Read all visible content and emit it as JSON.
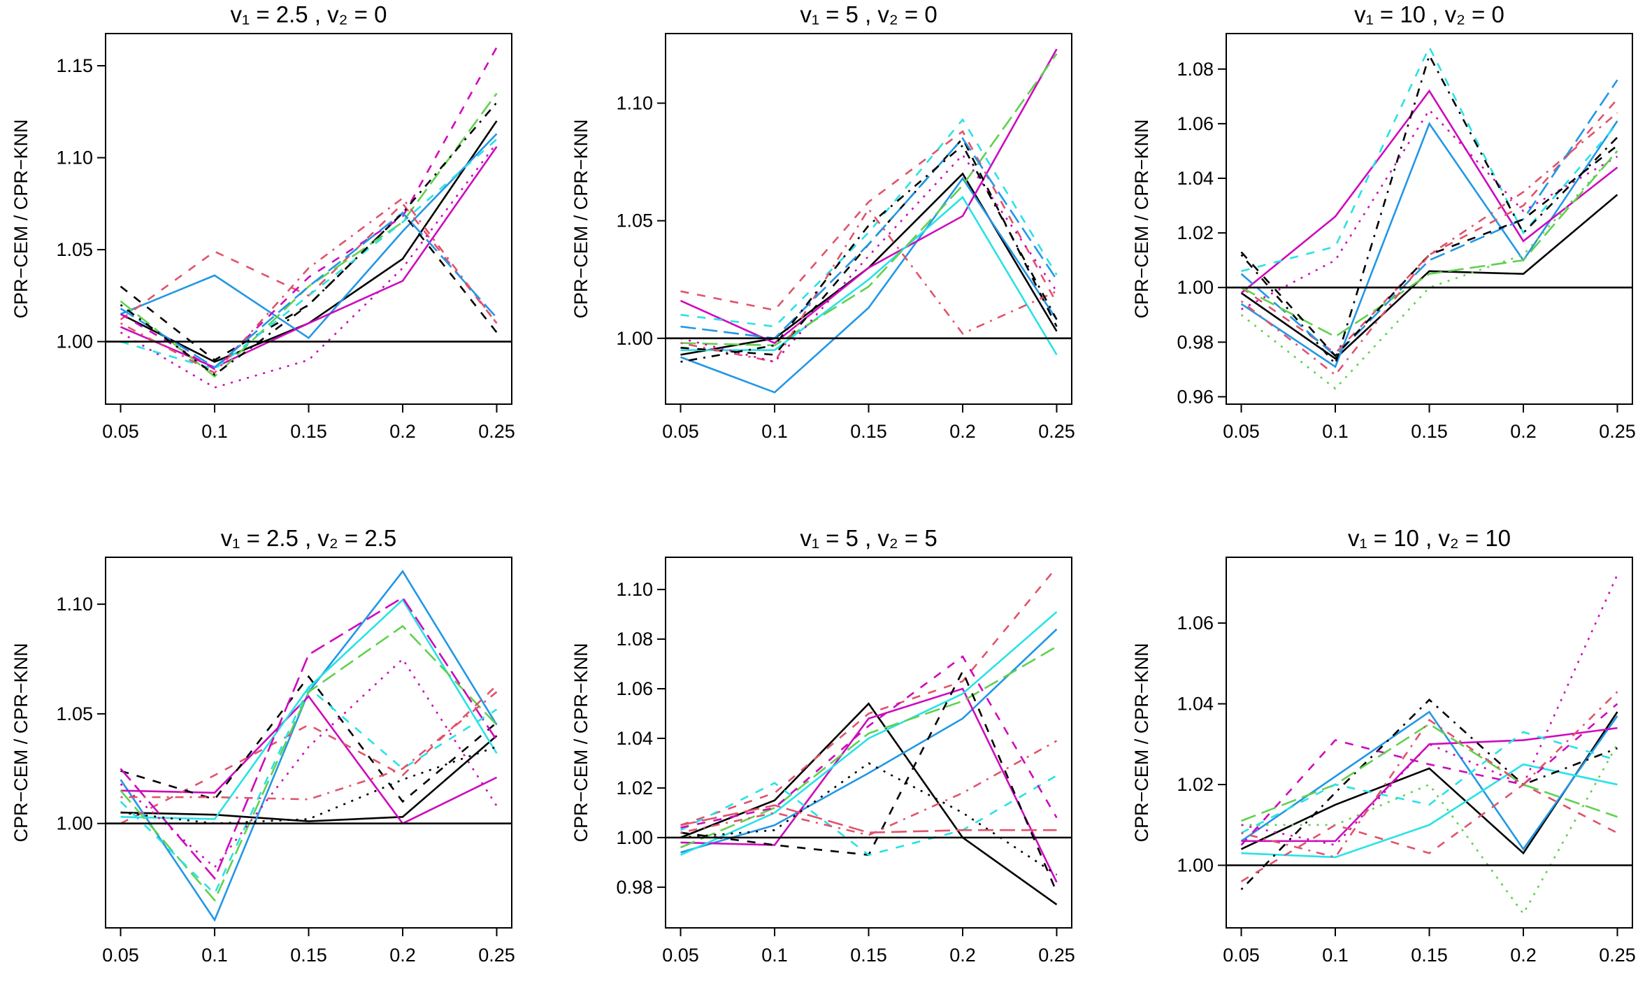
{
  "chart_data": [
    {
      "type": "line",
      "title": "v₁ = 2.5 , v₂ = 0",
      "ylabel": "CPR−CEM / CPR−KNN",
      "x": [
        0.05,
        0.1,
        0.15,
        0.2,
        0.25
      ],
      "xlim": [
        0.042,
        0.258
      ],
      "xticks": [
        0.05,
        0.1,
        0.15,
        0.2,
        0.25
      ],
      "ylim": [
        0.966,
        1.1675
      ],
      "yticks": [
        {
          "value": 1,
          "label": "1.00"
        },
        1.05,
        {
          "value": 1.1,
          "label": "1.10"
        },
        1.15
      ],
      "hline": 1,
      "series": [
        {
          "color": "#000000",
          "dash": "solid",
          "values": [
            1.015,
            0.989,
            1.01,
            1.045,
            1.12
          ]
        },
        {
          "color": "#2297E6",
          "dash": "solid",
          "values": [
            1.015,
            1.036,
            1.002,
            1.06,
            1.113
          ]
        },
        {
          "color": "#CD0BBC",
          "dash": "solid",
          "values": [
            1.008,
            0.986,
            1.01,
            1.033,
            1.106
          ]
        },
        {
          "color": "#000000",
          "dash": "dashed",
          "values": [
            1.03,
            0.99,
            1.02,
            1.07,
            1.005
          ]
        },
        {
          "color": "#DF536B",
          "dash": "dashed",
          "values": [
            1.012,
            1.049,
            1.025,
            1.075,
            1.01
          ]
        },
        {
          "color": "#CD0BBC",
          "dash": "dashed",
          "values": [
            1.015,
            0.985,
            1.035,
            1.068,
            1.16
          ]
        },
        {
          "color": "#61D04F",
          "dash": "longdash",
          "values": [
            1.022,
            0.981,
            1.03,
            1.065,
            1.135
          ]
        },
        {
          "color": "#28E2E5",
          "dash": "dashed",
          "values": [
            1.0,
            0.985,
            1.025,
            1.065,
            1.11
          ]
        },
        {
          "color": "#CD0BBC",
          "dash": "dotted",
          "values": [
            1.005,
            0.975,
            0.99,
            1.04,
            1.108
          ]
        },
        {
          "color": "#DF536B",
          "dash": "dotdash",
          "values": [
            1.01,
            0.983,
            1.04,
            1.078,
            1.01
          ]
        },
        {
          "color": "#2297E6",
          "dash": "longdash",
          "values": [
            1.018,
            0.986,
            1.03,
            1.07,
            1.013
          ]
        },
        {
          "color": "#000000",
          "dash": "dotdash",
          "values": [
            1.02,
            0.982,
            1.02,
            1.07,
            1.13
          ]
        }
      ]
    },
    {
      "type": "line",
      "title": "v₁ = 5 , v₂ = 0",
      "ylabel": "CPR−CEM / CPR−KNN",
      "x": [
        0.05,
        0.1,
        0.15,
        0.2,
        0.25
      ],
      "xlim": [
        0.042,
        0.258
      ],
      "xticks": [
        0.05,
        0.1,
        0.15,
        0.2,
        0.25
      ],
      "ylim": [
        0.972,
        1.1296
      ],
      "yticks": [
        {
          "value": 1,
          "label": "1.00"
        },
        1.05,
        {
          "value": 1.1,
          "label": "1.10"
        }
      ],
      "hline": 1,
      "series": [
        {
          "color": "#000000",
          "dash": "solid",
          "values": [
            0.993,
            1.0,
            1.03,
            1.07,
            1.003
          ]
        },
        {
          "color": "#2297E6",
          "dash": "solid",
          "values": [
            0.992,
            0.977,
            1.013,
            1.068,
            1.008
          ]
        },
        {
          "color": "#CD0BBC",
          "dash": "solid",
          "values": [
            1.016,
            0.998,
            1.03,
            1.052,
            1.123
          ]
        },
        {
          "color": "#28E2E5",
          "dash": "solid",
          "values": [
            0.995,
            0.995,
            1.025,
            1.06,
            0.993
          ]
        },
        {
          "color": "#61D04F",
          "dash": "longdash",
          "values": [
            0.998,
            0.997,
            1.022,
            1.065,
            1.121
          ]
        },
        {
          "color": "#000000",
          "dash": "dashed",
          "values": [
            0.996,
            0.993,
            1.04,
            1.085,
            1.005
          ]
        },
        {
          "color": "#DF536B",
          "dash": "dashed",
          "values": [
            1.02,
            1.012,
            1.058,
            1.088,
            1.015
          ]
        },
        {
          "color": "#28E2E5",
          "dash": "dashed",
          "values": [
            1.01,
            1.005,
            1.045,
            1.093,
            1.027
          ]
        },
        {
          "color": "#DF536B",
          "dash": "dotdash",
          "values": [
            0.998,
            0.99,
            1.055,
            1.002,
            1.02
          ]
        },
        {
          "color": "#2297E6",
          "dash": "longdash",
          "values": [
            1.005,
            1.0,
            1.04,
            1.085,
            1.025
          ]
        },
        {
          "color": "#CD0BBC",
          "dash": "dotted",
          "values": [
            1.0,
            0.99,
            1.035,
            1.078,
            1.02
          ]
        },
        {
          "color": "#000000",
          "dash": "dotdash",
          "values": [
            0.99,
            0.997,
            1.048,
            1.082,
            1.008
          ]
        }
      ]
    },
    {
      "type": "line",
      "title": "v₁ = 10 , v₂ = 0",
      "ylabel": "CPR−CEM / CPR−KNN",
      "x": [
        0.05,
        0.1,
        0.15,
        0.2,
        0.25
      ],
      "xlim": [
        0.042,
        0.258
      ],
      "xticks": [
        0.05,
        0.1,
        0.15,
        0.2,
        0.25
      ],
      "ylim": [
        0.9573,
        1.093
      ],
      "yticks": [
        0.96,
        0.98,
        {
          "value": 1,
          "label": "1.00"
        },
        1.02,
        1.04,
        1.06,
        1.08
      ],
      "hline": 1,
      "series": [
        {
          "color": "#000000",
          "dash": "solid",
          "values": [
            0.998,
            0.974,
            1.006,
            1.005,
            1.034
          ]
        },
        {
          "color": "#2297E6",
          "dash": "solid",
          "values": [
            0.994,
            0.971,
            1.06,
            1.01,
            1.061
          ]
        },
        {
          "color": "#CD0BBC",
          "dash": "solid",
          "values": [
            0.998,
            1.026,
            1.072,
            1.017,
            1.044
          ]
        },
        {
          "color": "#28E2E5",
          "dash": "dashed",
          "values": [
            1.006,
            1.015,
            1.088,
            1.02,
            1.06
          ]
        },
        {
          "color": "#000000",
          "dash": "dotdash",
          "values": [
            1.012,
            0.972,
            1.085,
            1.02,
            1.055
          ]
        },
        {
          "color": "#DF536B",
          "dash": "dashed",
          "values": [
            1.0,
            0.976,
            1.012,
            1.03,
            1.069
          ]
        },
        {
          "color": "#2297E6",
          "dash": "longdash",
          "values": [
            1.005,
            0.975,
            1.01,
            1.025,
            1.076
          ]
        },
        {
          "color": "#61D04F",
          "dash": "dotted",
          "values": [
            0.99,
            0.963,
            1.0,
            1.012,
            1.05
          ]
        },
        {
          "color": "#CD0BBC",
          "dash": "dotted",
          "values": [
            0.992,
            1.01,
            1.065,
            1.028,
            1.048
          ]
        },
        {
          "color": "#61D04F",
          "dash": "longdash",
          "values": [
            1.0,
            0.982,
            1.005,
            1.01,
            1.05
          ]
        },
        {
          "color": "#000000",
          "dash": "dashed",
          "values": [
            1.013,
            0.975,
            1.012,
            1.025,
            1.052
          ]
        },
        {
          "color": "#DF536B",
          "dash": "dotdash",
          "values": [
            0.995,
            0.968,
            1.012,
            1.035,
            1.064
          ]
        }
      ]
    },
    {
      "type": "line",
      "title": "v₁ = 2.5 , v₂ = 2.5",
      "ylabel": "CPR−CEM / CPR−KNN",
      "x": [
        0.05,
        0.1,
        0.15,
        0.2,
        0.25
      ],
      "xlim": [
        0.042,
        0.258
      ],
      "xticks": [
        0.05,
        0.1,
        0.15,
        0.2,
        0.25
      ],
      "ylim": [
        0.9524,
        1.1214
      ],
      "yticks": [
        {
          "value": 1,
          "label": "1.00"
        },
        1.05,
        {
          "value": 1.1,
          "label": "1.10"
        }
      ],
      "hline": 1,
      "series": [
        {
          "color": "#000000",
          "dash": "solid",
          "values": [
            1.005,
            1.004,
            1.001,
            1.003,
            1.04
          ]
        },
        {
          "color": "#2297E6",
          "dash": "solid",
          "values": [
            1.02,
            0.956,
            1.06,
            1.115,
            1.045
          ]
        },
        {
          "color": "#CD0BBC",
          "dash": "solid",
          "values": [
            1.015,
            1.014,
            1.058,
            1.0,
            1.021
          ]
        },
        {
          "color": "#28E2E5",
          "dash": "solid",
          "values": [
            1.003,
            1.002,
            1.062,
            1.102,
            1.032
          ]
        },
        {
          "color": "#61D04F",
          "dash": "longdash",
          "values": [
            1.015,
            0.965,
            1.06,
            1.09,
            1.045
          ]
        },
        {
          "color": "#DF536B",
          "dash": "dashed",
          "values": [
            1.0,
            1.022,
            1.045,
            1.022,
            1.063
          ]
        },
        {
          "color": "#000000",
          "dash": "dashed",
          "values": [
            1.024,
            1.011,
            1.067,
            1.01,
            1.046
          ]
        },
        {
          "color": "#CD0BBC",
          "dash": "longdash",
          "values": [
            1.025,
            0.975,
            1.077,
            1.103,
            1.038
          ]
        },
        {
          "color": "#28E2E5",
          "dash": "dashed",
          "values": [
            1.01,
            0.968,
            1.062,
            1.025,
            1.052
          ]
        },
        {
          "color": "#CD0BBC",
          "dash": "dotted",
          "values": [
            1.018,
            0.98,
            1.035,
            1.075,
            1.008
          ]
        },
        {
          "color": "#DF536B",
          "dash": "dotdash",
          "values": [
            1.012,
            1.012,
            1.011,
            1.025,
            1.06
          ]
        },
        {
          "color": "#000000",
          "dash": "dotted",
          "values": [
            1.005,
            1.0,
            1.002,
            1.02,
            1.035
          ]
        }
      ]
    },
    {
      "type": "line",
      "title": "v₁ = 5 , v₂ = 5",
      "ylabel": "CPR−CEM / CPR−KNN",
      "x": [
        0.05,
        0.1,
        0.15,
        0.2,
        0.25
      ],
      "xlim": [
        0.042,
        0.258
      ],
      "xticks": [
        0.05,
        0.1,
        0.15,
        0.2,
        0.25
      ],
      "ylim": [
        0.9636,
        1.113
      ],
      "yticks": [
        0.98,
        {
          "value": 1,
          "label": "1.00"
        },
        1.02,
        1.04,
        1.06,
        1.08,
        {
          "value": 1.1,
          "label": "1.10"
        }
      ],
      "hline": 1,
      "series": [
        {
          "color": "#000000",
          "dash": "solid",
          "values": [
            1.0,
            1.015,
            1.054,
            1.0,
            0.973
          ]
        },
        {
          "color": "#2297E6",
          "dash": "solid",
          "values": [
            0.994,
            1.005,
            1.026,
            1.048,
            1.084
          ]
        },
        {
          "color": "#CD0BBC",
          "dash": "solid",
          "values": [
            0.998,
            0.997,
            1.048,
            1.06,
            0.982
          ]
        },
        {
          "color": "#28E2E5",
          "dash": "solid",
          "values": [
            0.993,
            1.01,
            1.04,
            1.058,
            1.091
          ]
        },
        {
          "color": "#61D04F",
          "dash": "longdash",
          "values": [
            0.996,
            1.012,
            1.042,
            1.055,
            1.077
          ]
        },
        {
          "color": "#DF536B",
          "dash": "dashed",
          "values": [
            1.005,
            1.018,
            1.05,
            1.063,
            1.109
          ]
        },
        {
          "color": "#000000",
          "dash": "dashed",
          "values": [
            1.002,
            0.997,
            0.993,
            1.067,
            0.978
          ]
        },
        {
          "color": "#28E2E5",
          "dash": "dashed",
          "values": [
            1.003,
            1.022,
            0.993,
            1.003,
            1.025
          ]
        },
        {
          "color": "#CD0BBC",
          "dash": "dashed",
          "values": [
            1.004,
            1.012,
            1.045,
            1.073,
            1.008
          ]
        },
        {
          "color": "#DF536B",
          "dash": "dotdash",
          "values": [
            1.002,
            1.01,
            1.001,
            1.018,
            1.039
          ]
        },
        {
          "color": "#000000",
          "dash": "dotted",
          "values": [
            1.0,
            1.003,
            1.03,
            1.01,
            0.985
          ]
        },
        {
          "color": "#DF536B",
          "dash": "longdash",
          "values": [
            1.005,
            1.013,
            1.002,
            1.003,
            1.003
          ]
        }
      ]
    },
    {
      "type": "line",
      "title": "v₁ = 10 , v₂ = 10",
      "ylabel": "CPR−CEM / CPR−KNN",
      "x": [
        0.05,
        0.1,
        0.15,
        0.2,
        0.25
      ],
      "xlim": [
        0.042,
        0.258
      ],
      "xticks": [
        0.05,
        0.1,
        0.15,
        0.2,
        0.25
      ],
      "ylim": [
        0.9845,
        1.0763
      ],
      "yticks": [
        {
          "value": 1,
          "label": "1.00"
        },
        1.02,
        1.04,
        1.06
      ],
      "hline": 1,
      "series": [
        {
          "color": "#000000",
          "dash": "solid",
          "values": [
            1.004,
            1.015,
            1.024,
            1.003,
            1.038
          ]
        },
        {
          "color": "#2297E6",
          "dash": "solid",
          "values": [
            1.006,
            1.022,
            1.038,
            1.004,
            1.037
          ]
        },
        {
          "color": "#CD0BBC",
          "dash": "solid",
          "values": [
            1.006,
            1.006,
            1.03,
            1.031,
            1.034
          ]
        },
        {
          "color": "#28E2E5",
          "dash": "solid",
          "values": [
            1.003,
            1.002,
            1.01,
            1.025,
            1.02
          ]
        },
        {
          "color": "#61D04F",
          "dash": "dotted",
          "values": [
            1.01,
            1.01,
            1.02,
            0.988,
            1.03
          ]
        },
        {
          "color": "#CD0BBC",
          "dash": "dotted",
          "values": [
            1.01,
            1.005,
            1.03,
            1.02,
            1.072
          ]
        },
        {
          "color": "#000000",
          "dash": "dotdash",
          "values": [
            0.994,
            1.018,
            1.041,
            1.02,
            1.029
          ]
        },
        {
          "color": "#CD0BBC",
          "dash": "dashed",
          "values": [
            1.005,
            1.031,
            1.025,
            1.02,
            1.04
          ]
        },
        {
          "color": "#DF536B",
          "dash": "dashed",
          "values": [
            0.996,
            1.01,
            1.003,
            1.02,
            1.008
          ]
        },
        {
          "color": "#61D04F",
          "dash": "longdash",
          "values": [
            1.011,
            1.02,
            1.035,
            1.02,
            1.012
          ]
        },
        {
          "color": "#28E2E5",
          "dash": "dashed",
          "values": [
            1.008,
            1.02,
            1.015,
            1.033,
            1.026
          ]
        },
        {
          "color": "#DF536B",
          "dash": "dotdash",
          "values": [
            1.008,
            1.002,
            1.036,
            1.02,
            1.043
          ]
        }
      ]
    }
  ]
}
